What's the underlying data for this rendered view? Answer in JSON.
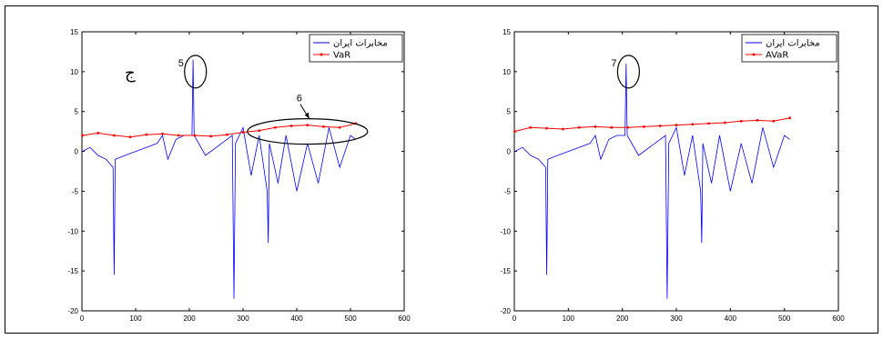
{
  "chart_data": [
    {
      "type": "line",
      "panel_label": "ج",
      "xlim": [
        0,
        600
      ],
      "ylim": [
        -20,
        15
      ],
      "xticks": [
        "0",
        "100",
        "200",
        "300",
        "400",
        "500",
        "600"
      ],
      "yticks": [
        "15",
        "10",
        "5",
        "0",
        "-5",
        "-10",
        "-15",
        "-20"
      ],
      "legend_position": "top-right",
      "series": [
        {
          "name": "مخابرات ایران",
          "color": "#0000ff",
          "x": [
            1,
            15,
            30,
            45,
            58,
            60,
            62,
            80,
            100,
            120,
            140,
            150,
            160,
            175,
            190,
            205,
            207,
            209,
            230,
            260,
            280,
            283,
            286,
            300,
            315,
            330,
            345,
            347,
            349,
            365,
            380,
            400,
            420,
            440,
            460,
            480,
            500,
            510
          ],
          "y": [
            0,
            0.5,
            -0.5,
            -1,
            -2,
            -15.5,
            -1,
            -0.5,
            0,
            0.5,
            1,
            2,
            -1,
            1.5,
            2,
            2,
            11.5,
            2,
            -0.5,
            1,
            2,
            -18.5,
            1,
            3,
            -3,
            2,
            -5,
            -11.5,
            1,
            -4,
            2,
            -5,
            1,
            -4,
            3,
            -2,
            2,
            1.5
          ]
        },
        {
          "name": "VaR",
          "color": "#ff0000",
          "x": [
            1,
            30,
            60,
            90,
            120,
            150,
            180,
            210,
            240,
            270,
            300,
            330,
            360,
            390,
            420,
            450,
            480,
            510
          ],
          "y": [
            2,
            2.3,
            2,
            1.8,
            2.1,
            2.2,
            2.0,
            2.0,
            1.9,
            2.1,
            2.4,
            2.6,
            3.0,
            3.2,
            3.3,
            3.1,
            3.0,
            3.5
          ]
        }
      ],
      "annotations": [
        {
          "label": "5",
          "x": 208,
          "y": 10
        },
        {
          "label": "6",
          "x": 420,
          "y": 2.5
        }
      ]
    },
    {
      "type": "line",
      "xlim": [
        0,
        600
      ],
      "ylim": [
        -20,
        15
      ],
      "xticks": [
        "0",
        "100",
        "200",
        "300",
        "400",
        "500",
        "600"
      ],
      "yticks": [
        "15",
        "10",
        "5",
        "0",
        "-5",
        "-10",
        "-15",
        "-20"
      ],
      "legend_position": "top-right",
      "series": [
        {
          "name": "مخابرات ایران",
          "color": "#0000ff",
          "x": [
            1,
            15,
            30,
            45,
            58,
            60,
            62,
            80,
            100,
            120,
            140,
            150,
            160,
            175,
            190,
            205,
            207,
            209,
            230,
            260,
            280,
            283,
            286,
            300,
            315,
            330,
            345,
            347,
            349,
            365,
            380,
            400,
            420,
            440,
            460,
            480,
            500,
            510
          ],
          "y": [
            0,
            0.5,
            -0.5,
            -1,
            -2,
            -15.5,
            -1,
            -0.5,
            0,
            0.5,
            1,
            2,
            -1,
            1.5,
            2,
            2,
            11,
            2,
            -0.5,
            1,
            2,
            -18.5,
            1,
            3,
            -3,
            2,
            -5,
            -11.5,
            1,
            -4,
            2,
            -5,
            1,
            -4,
            3,
            -2,
            2,
            1.5
          ]
        },
        {
          "name": "AVaR",
          "color": "#ff0000",
          "x": [
            1,
            30,
            60,
            90,
            120,
            150,
            180,
            210,
            240,
            270,
            300,
            330,
            360,
            390,
            420,
            450,
            480,
            510
          ],
          "y": [
            2.5,
            3.0,
            2.9,
            2.8,
            3.0,
            3.1,
            3.0,
            3.0,
            3.1,
            3.2,
            3.3,
            3.4,
            3.5,
            3.6,
            3.8,
            3.9,
            3.8,
            4.2
          ]
        }
      ],
      "annotations": [
        {
          "label": "7",
          "x": 208,
          "y": 10
        }
      ]
    }
  ]
}
